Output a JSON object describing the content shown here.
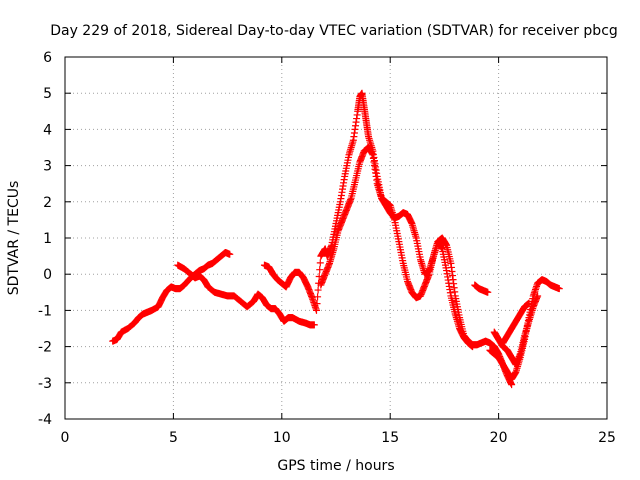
{
  "chart_data": {
    "type": "scatter",
    "title": "Day 229 of 2018, Sidereal Day-to-day VTEC variation (SDTVAR) for receiver pbcg",
    "xlabel": "GPS time / hours",
    "ylabel": "SDTVAR / TECUs",
    "xlim": [
      0,
      25
    ],
    "ylim": [
      -4,
      6
    ],
    "x_ticks": [
      "0",
      "5",
      "10",
      "15",
      "20",
      "25"
    ],
    "y_ticks": [
      "-4",
      "-3",
      "-2",
      "-1",
      "0",
      "1",
      "2",
      "3",
      "4",
      "5",
      "6"
    ],
    "grid": true,
    "marker": "+",
    "series": [
      {
        "color": "#ff0000",
        "x": [
          2.2,
          2.4,
          2.6,
          2.9,
          3.2,
          3.4,
          3.6,
          3.8,
          4.0,
          4.3,
          4.5,
          4.7,
          4.9,
          5.1,
          5.3,
          5.5,
          5.8,
          6.0,
          6.2,
          6.4,
          6.6,
          6.8,
          7.0,
          7.2,
          7.4,
          7.6
        ],
        "y": [
          -1.85,
          -1.8,
          -1.6,
          -1.5,
          -1.35,
          -1.2,
          -1.1,
          -1.05,
          -1.0,
          -0.9,
          -0.65,
          -0.45,
          -0.35,
          -0.4,
          -0.4,
          -0.3,
          -0.1,
          0.0,
          0.1,
          0.15,
          0.25,
          0.3,
          0.4,
          0.5,
          0.6,
          0.55
        ]
      },
      {
        "color": "#ff0000",
        "x": [
          5.2,
          5.5,
          5.8,
          6.0,
          6.2,
          6.4,
          6.6,
          6.9,
          7.2,
          7.5,
          7.8,
          8.1,
          8.4,
          8.7,
          8.9,
          9.1,
          9.3,
          9.5,
          9.7,
          9.9,
          10.1,
          10.3,
          10.5,
          10.8,
          11.1,
          11.3,
          11.5
        ],
        "y": [
          0.25,
          0.15,
          0.0,
          -0.1,
          -0.05,
          -0.15,
          -0.35,
          -0.5,
          -0.55,
          -0.6,
          -0.6,
          -0.75,
          -0.9,
          -0.75,
          -0.55,
          -0.65,
          -0.85,
          -0.95,
          -0.95,
          -1.1,
          -1.3,
          -1.2,
          -1.2,
          -1.3,
          -1.35,
          -1.4,
          -1.4
        ]
      },
      {
        "color": "#ff0000",
        "x": [
          9.2,
          9.4,
          9.6,
          9.8,
          10.0,
          10.2,
          10.4,
          10.6,
          10.8,
          11.0,
          11.2,
          11.4,
          11.6,
          11.8,
          12.0,
          12.1,
          12.3,
          12.5,
          12.7,
          12.9,
          13.1,
          13.3,
          13.5,
          13.6,
          13.7,
          13.8,
          13.9,
          14.0,
          14.2,
          14.4,
          14.6,
          14.8,
          15.0,
          15.2,
          15.4,
          15.6,
          15.8,
          16.0,
          16.2,
          16.4,
          16.6,
          16.8,
          17.0,
          17.2,
          17.4,
          17.6,
          17.8,
          18.0,
          18.2,
          18.4,
          18.6,
          18.8,
          19.0,
          19.2,
          19.4,
          19.6,
          19.8,
          20.0,
          20.2,
          20.4,
          20.6
        ],
        "y": [
          0.25,
          0.2,
          0.0,
          -0.15,
          -0.25,
          -0.35,
          -0.1,
          0.05,
          0.05,
          -0.1,
          -0.35,
          -0.65,
          -1.0,
          0.5,
          0.7,
          0.5,
          0.8,
          1.4,
          2.0,
          2.7,
          3.3,
          3.7,
          4.5,
          4.9,
          5.0,
          4.6,
          4.2,
          3.8,
          3.4,
          2.7,
          2.1,
          1.9,
          1.7,
          1.55,
          1.6,
          1.7,
          1.65,
          1.4,
          1.0,
          0.4,
          0.0,
          0.1,
          0.5,
          0.9,
          1.0,
          0.8,
          0.3,
          -0.6,
          -1.2,
          -1.7,
          -1.85,
          -1.95,
          -1.95,
          -1.9,
          -1.85,
          -1.9,
          -2.0,
          -2.2,
          -2.5,
          -2.8,
          -3.05
        ]
      },
      {
        "color": "#ff0000",
        "x": [
          11.8,
          12.0,
          12.2,
          12.4,
          12.6,
          12.8,
          13.0,
          13.2,
          13.4,
          13.6,
          13.8,
          14.0,
          14.2,
          14.4,
          14.6,
          14.8,
          15.0,
          15.2,
          15.4,
          15.6,
          15.8,
          16.0,
          16.2,
          16.4,
          16.6,
          16.8,
          17.0,
          17.2,
          17.4,
          17.6,
          17.8,
          18.0,
          18.2,
          18.4,
          18.6,
          18.8
        ],
        "y": [
          -0.3,
          0.0,
          0.3,
          0.7,
          1.2,
          1.5,
          1.8,
          2.1,
          2.6,
          3.1,
          3.4,
          3.5,
          3.3,
          2.5,
          2.1,
          2.0,
          1.9,
          1.5,
          0.9,
          0.3,
          -0.2,
          -0.5,
          -0.65,
          -0.6,
          -0.3,
          0.0,
          0.5,
          0.9,
          0.7,
          0.1,
          -0.6,
          -1.1,
          -1.5,
          -1.75,
          -1.9,
          -2.0
        ]
      },
      {
        "color": "#ff0000",
        "x": [
          18.9,
          19.1,
          19.3,
          19.5
        ],
        "y": [
          -0.3,
          -0.4,
          -0.45,
          -0.5
        ]
      },
      {
        "color": "#ff0000",
        "x": [
          19.6,
          19.8,
          20.0,
          20.2,
          20.4,
          20.6,
          20.8,
          21.0,
          21.2,
          21.4,
          21.6,
          21.8,
          22.0,
          22.2,
          22.4,
          22.6,
          22.8
        ],
        "y": [
          -2.1,
          -2.2,
          -2.3,
          -2.5,
          -2.7,
          -2.9,
          -2.7,
          -2.3,
          -1.8,
          -1.2,
          -0.6,
          -0.25,
          -0.15,
          -0.2,
          -0.3,
          -0.35,
          -0.4
        ]
      },
      {
        "color": "#ff0000",
        "x": [
          19.8,
          20.0,
          20.2,
          20.4,
          20.6,
          20.8,
          21.0,
          21.2,
          21.4,
          21.6,
          21.8
        ],
        "y": [
          -1.6,
          -1.8,
          -2.0,
          -2.1,
          -2.3,
          -2.5,
          -2.2,
          -1.7,
          -1.3,
          -0.9,
          -0.6
        ]
      },
      {
        "color": "#ff0000",
        "x": [
          20.2,
          20.4,
          20.6,
          20.8,
          21.0,
          21.2,
          21.4
        ],
        "y": [
          -1.9,
          -1.7,
          -1.5,
          -1.3,
          -1.1,
          -0.9,
          -0.8
        ]
      }
    ]
  }
}
